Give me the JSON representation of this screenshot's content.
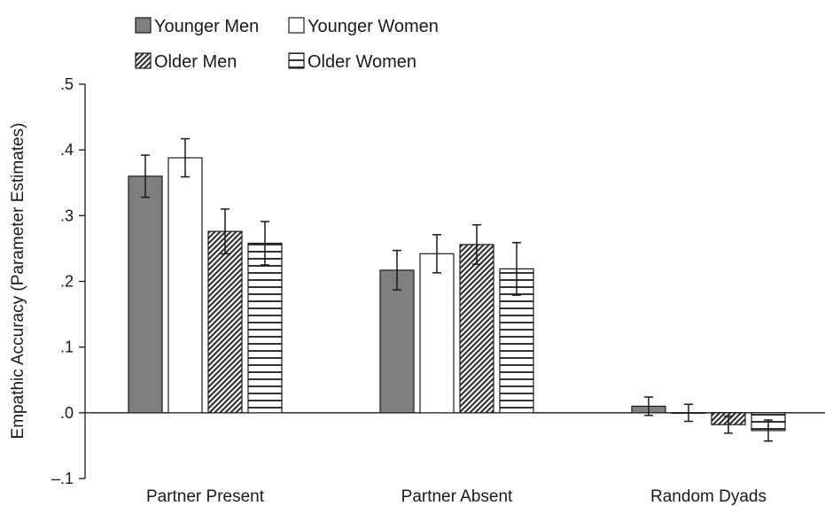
{
  "chart_data": {
    "type": "bar",
    "title": "",
    "xlabel": "",
    "ylabel": "Empathic Accuracy (Parameter Estimates)",
    "ylim": [
      -0.1,
      0.5
    ],
    "yticks": [
      -0.1,
      0.0,
      0.1,
      0.2,
      0.3,
      0.4,
      0.5
    ],
    "ytick_labels": [
      "–.1",
      ".0",
      ".1",
      ".2",
      ".3",
      ".4",
      ".5"
    ],
    "categories": [
      "Partner Present",
      "Partner Absent",
      "Random Dyads"
    ],
    "grid": false,
    "legend_position": "top-left",
    "series": [
      {
        "name": "Younger Men",
        "fill": "solid",
        "color": "#7f7f7f",
        "values": [
          0.36,
          0.217,
          0.01
        ],
        "error": [
          0.032,
          0.03,
          0.014
        ]
      },
      {
        "name": "Younger Women",
        "fill": "empty",
        "color": "#ffffff",
        "values": [
          0.388,
          0.242,
          0.0
        ],
        "error": [
          0.029,
          0.029,
          0.013
        ]
      },
      {
        "name": "Older Men",
        "fill": "diagonal-hatch",
        "color": "#3a3a3a",
        "values": [
          0.276,
          0.256,
          -0.018
        ],
        "error": [
          0.034,
          0.03,
          0.013
        ]
      },
      {
        "name": "Older Women",
        "fill": "horizontal-stripes",
        "color": "#3a3a3a",
        "values": [
          0.258,
          0.219,
          -0.027
        ],
        "error": [
          0.033,
          0.04,
          0.016
        ]
      }
    ]
  }
}
